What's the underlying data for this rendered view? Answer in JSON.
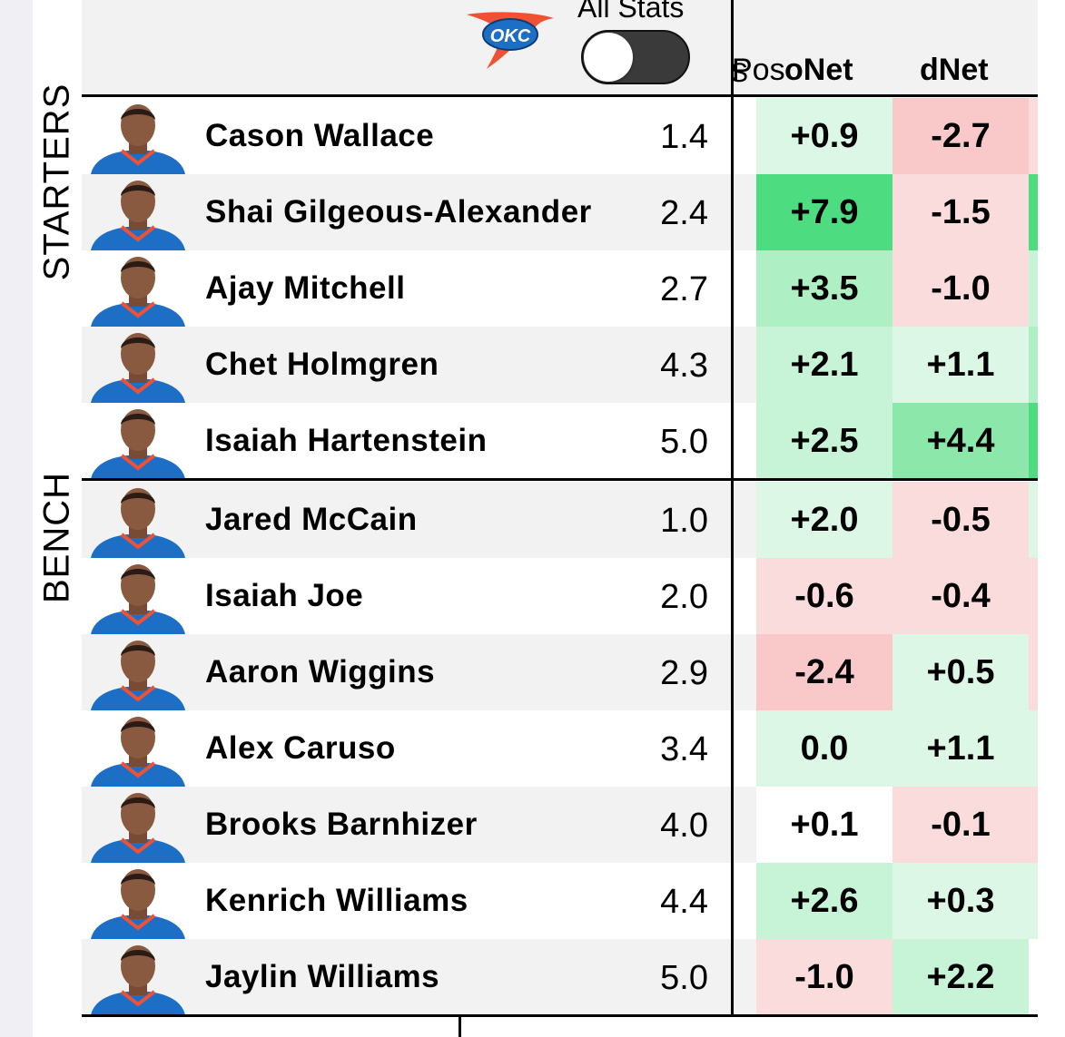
{
  "header": {
    "toggle_caption": "All Stats",
    "toggle_on": false,
    "pos_label": "Pos",
    "col_fragment": "S",
    "onet_label": "oNet",
    "dnet_label": "dNet"
  },
  "groups": {
    "starters": "STARTERS",
    "bench": "BENCH"
  },
  "colors": {
    "team_blue": "#1D6FC6",
    "team_orange": "#F05133",
    "green_strong": "#4ddc7f",
    "green_mid": "#aef0c4",
    "green_light": "#ddf7e6",
    "red_mid": "#f9c8c9",
    "red_light": "#fbdcdd"
  },
  "players": [
    {
      "name": "Cason Wallace",
      "pos": "1.4",
      "onet": "+0.9",
      "dnet": "-2.7",
      "onet_color": "#ddf7e6",
      "dnet_color": "#f9c8c9",
      "edge_color": "#fbdcdd"
    },
    {
      "name": "Shai Gilgeous-Alexander",
      "pos": "2.4",
      "onet": "+7.9",
      "dnet": "-1.5",
      "onet_color": "#4ddc7f",
      "dnet_color": "#fbdcdd",
      "edge_color": "#4ddc7f"
    },
    {
      "name": "Ajay Mitchell",
      "pos": "2.7",
      "onet": "+3.5",
      "dnet": "-1.0",
      "onet_color": "#aef0c4",
      "dnet_color": "#fbdcdd",
      "edge_color": "#c7f4d6"
    },
    {
      "name": "Chet Holmgren",
      "pos": "4.3",
      "onet": "+2.1",
      "dnet": "+1.1",
      "onet_color": "#c7f4d6",
      "dnet_color": "#ddf7e6",
      "edge_color": "#aef0c4"
    },
    {
      "name": "Isaiah Hartenstein",
      "pos": "5.0",
      "onet": "+2.5",
      "dnet": "+4.4",
      "onet_color": "#c7f4d6",
      "dnet_color": "#8be8aa",
      "edge_color": "#4ddc7f"
    },
    {
      "name": "Jared McCain",
      "pos": "1.0",
      "onet": "+2.0",
      "dnet": "-0.5",
      "onet_color": "#ddf7e6",
      "dnet_color": "#fbdcdd",
      "edge_color": "#ddf7e6"
    },
    {
      "name": "Isaiah Joe",
      "pos": "2.0",
      "onet": "-0.6",
      "dnet": "-0.4",
      "onet_color": "#fbdcdd",
      "dnet_color": "#fbdcdd",
      "edge_color": "#fbdcdd"
    },
    {
      "name": "Aaron Wiggins",
      "pos": "2.9",
      "onet": "-2.4",
      "dnet": "+0.5",
      "onet_color": "#f9c8c9",
      "dnet_color": "#ddf7e6",
      "edge_color": "#fbdcdd"
    },
    {
      "name": "Alex Caruso",
      "pos": "3.4",
      "onet": "0.0",
      "dnet": "+1.1",
      "onet_color": "#ddf7e6",
      "dnet_color": "#ddf7e6",
      "edge_color": "#ddf7e6"
    },
    {
      "name": "Brooks Barnhizer",
      "pos": "4.0",
      "onet": "+0.1",
      "dnet": "-0.1",
      "onet_color": "#ffffff",
      "dnet_color": "#fbdcdd",
      "edge_color": "#fbdcdd"
    },
    {
      "name": "Kenrich Williams",
      "pos": "4.4",
      "onet": "+2.6",
      "dnet": "+0.3",
      "onet_color": "#c7f4d6",
      "dnet_color": "#ddf7e6",
      "edge_color": "#ddf7e6"
    },
    {
      "name": "Jaylin Williams",
      "pos": "5.0",
      "onet": "-1.0",
      "dnet": "+2.2",
      "onet_color": "#fbdcdd",
      "dnet_color": "#c7f4d6",
      "edge_color": "#ffffff"
    }
  ]
}
